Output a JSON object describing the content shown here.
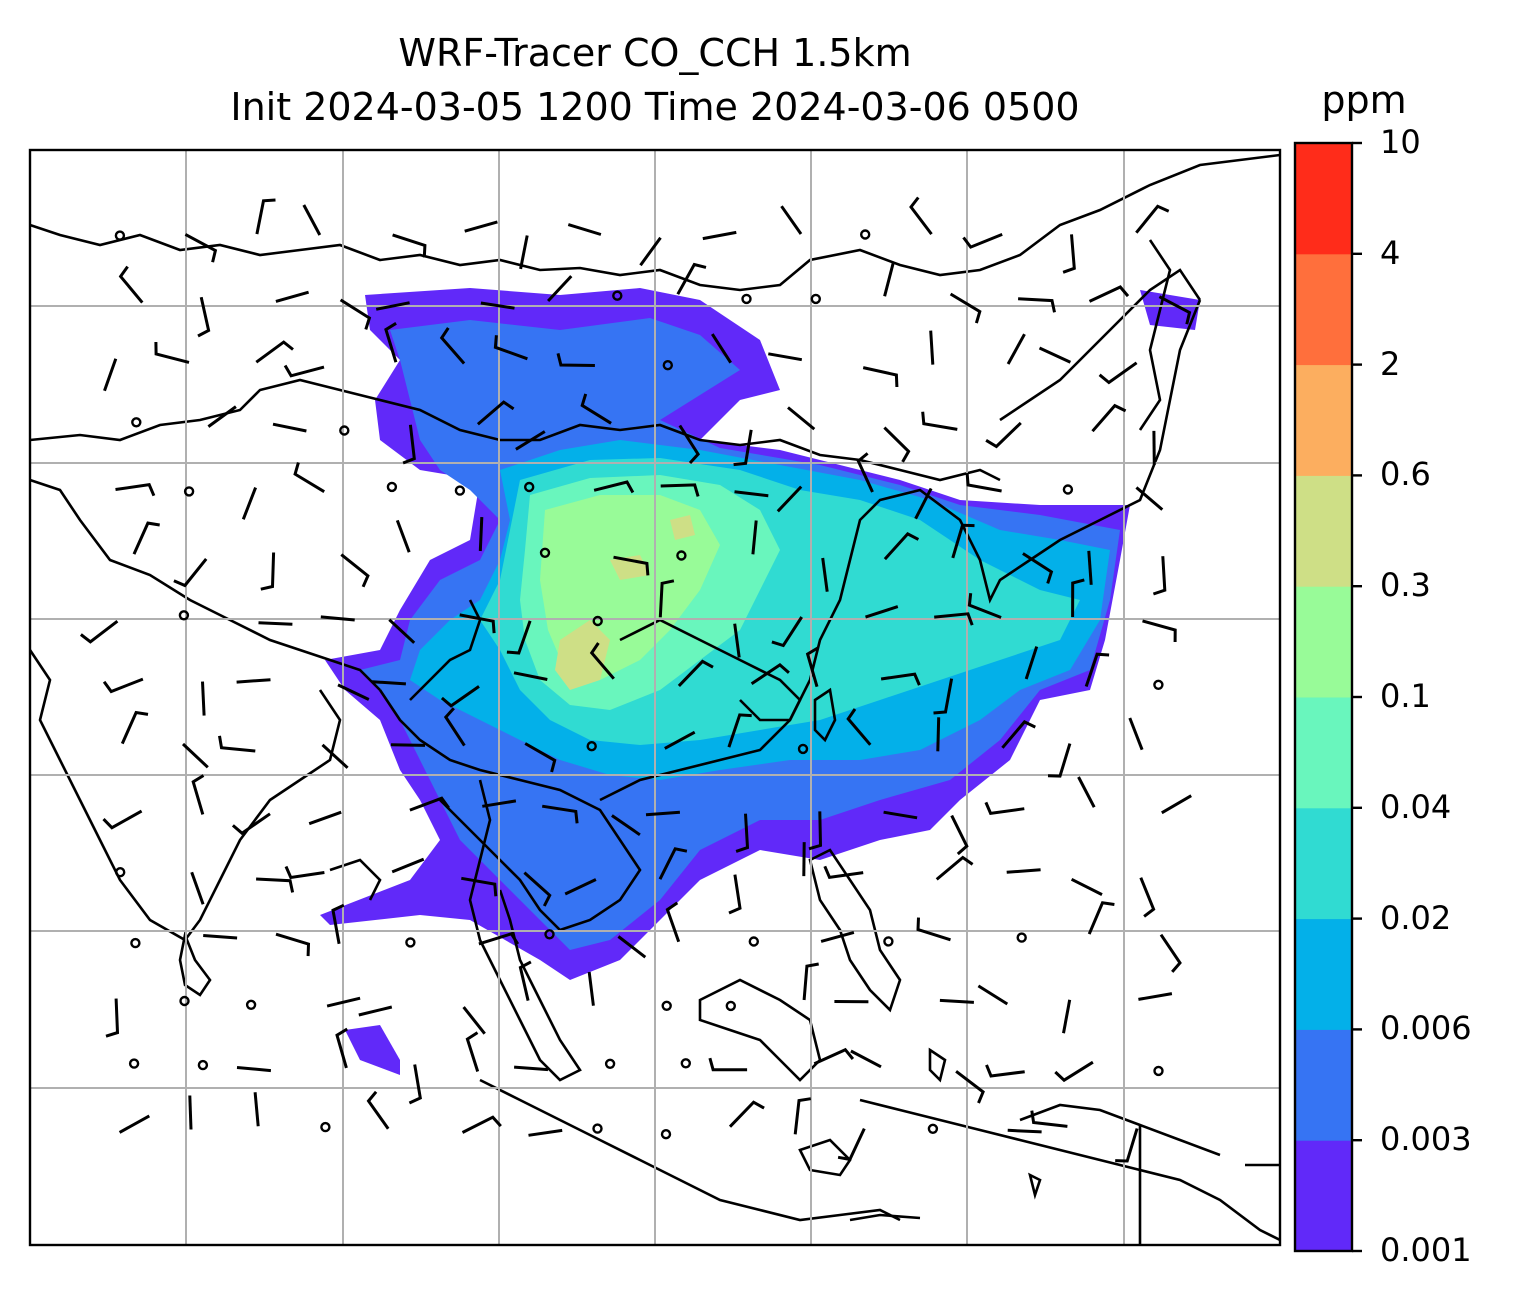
{
  "title": {
    "line1": "WRF-Tracer CO_CCH 1.5km",
    "line2": "Init 2024-03-05 1200 Time 2024-03-06 0500"
  },
  "colorbar": {
    "unit": "ppm",
    "levels": [
      "0.001",
      "0.003",
      "0.006",
      "0.02",
      "0.04",
      "0.1",
      "0.3",
      "0.6",
      "2",
      "4",
      "10"
    ],
    "colors": [
      "#6129f9",
      "#3674f3",
      "#03b0e9",
      "#30dbd2",
      "#69f6bd",
      "#98fb98",
      "#cedf86",
      "#fcae5f",
      "#ff6f3c",
      "#ff2c1a"
    ]
  },
  "map": {
    "type": "filled-contour-with-wind-barbs",
    "field": "CO_CCH",
    "gridlines": true,
    "coastlines": true
  }
}
